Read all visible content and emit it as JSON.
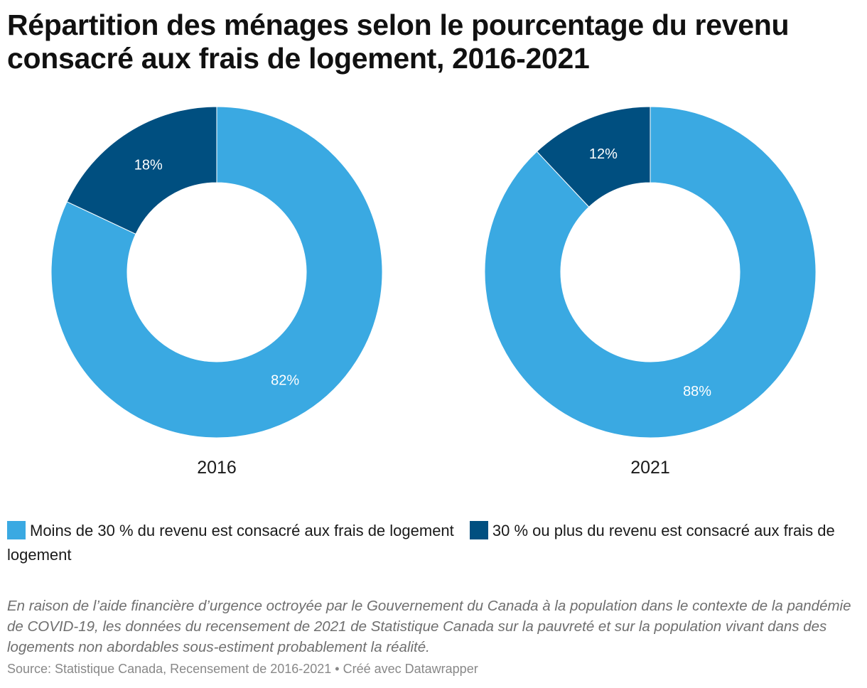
{
  "title": "Répartition des ménages selon le pourcentage du revenu consacré aux frais de logement, 2016-2021",
  "chart_data": {
    "type": "pie",
    "variant": "donut",
    "series_names": [
      "Moins de 30 % du revenu est consacré aux frais de logement",
      "30 % ou plus du revenu est consacré aux frais de logement"
    ],
    "colors": [
      "#3aa9e2",
      "#004f80"
    ],
    "charts": [
      {
        "title": "2016",
        "values": [
          82,
          18
        ],
        "labels": [
          "82%",
          "18%"
        ]
      },
      {
        "title": "2021",
        "values": [
          88,
          12
        ],
        "labels": [
          "88%",
          "12%"
        ]
      }
    ],
    "legend_position": "bottom"
  },
  "legend": {
    "items": [
      {
        "label": "Moins de 30 % du revenu est consacré aux frais de logement",
        "color": "#3aa9e2"
      },
      {
        "label": "30 % ou plus du revenu est consacré aux frais de logement",
        "color": "#004f80"
      }
    ]
  },
  "note": "En raison de l’aide financière d’urgence octroyée par le Gouvernement du Canada à la population dans le contexte de la pandémie de COVID-19, les données du recensement de 2021 de Statistique Canada sur la pauvreté et sur la population vivant dans des logements non abordables sous-estiment probablement la réalité.",
  "source": "Source: Statistique Canada, Recensement de 2016-2021 • Créé avec Datawrapper"
}
